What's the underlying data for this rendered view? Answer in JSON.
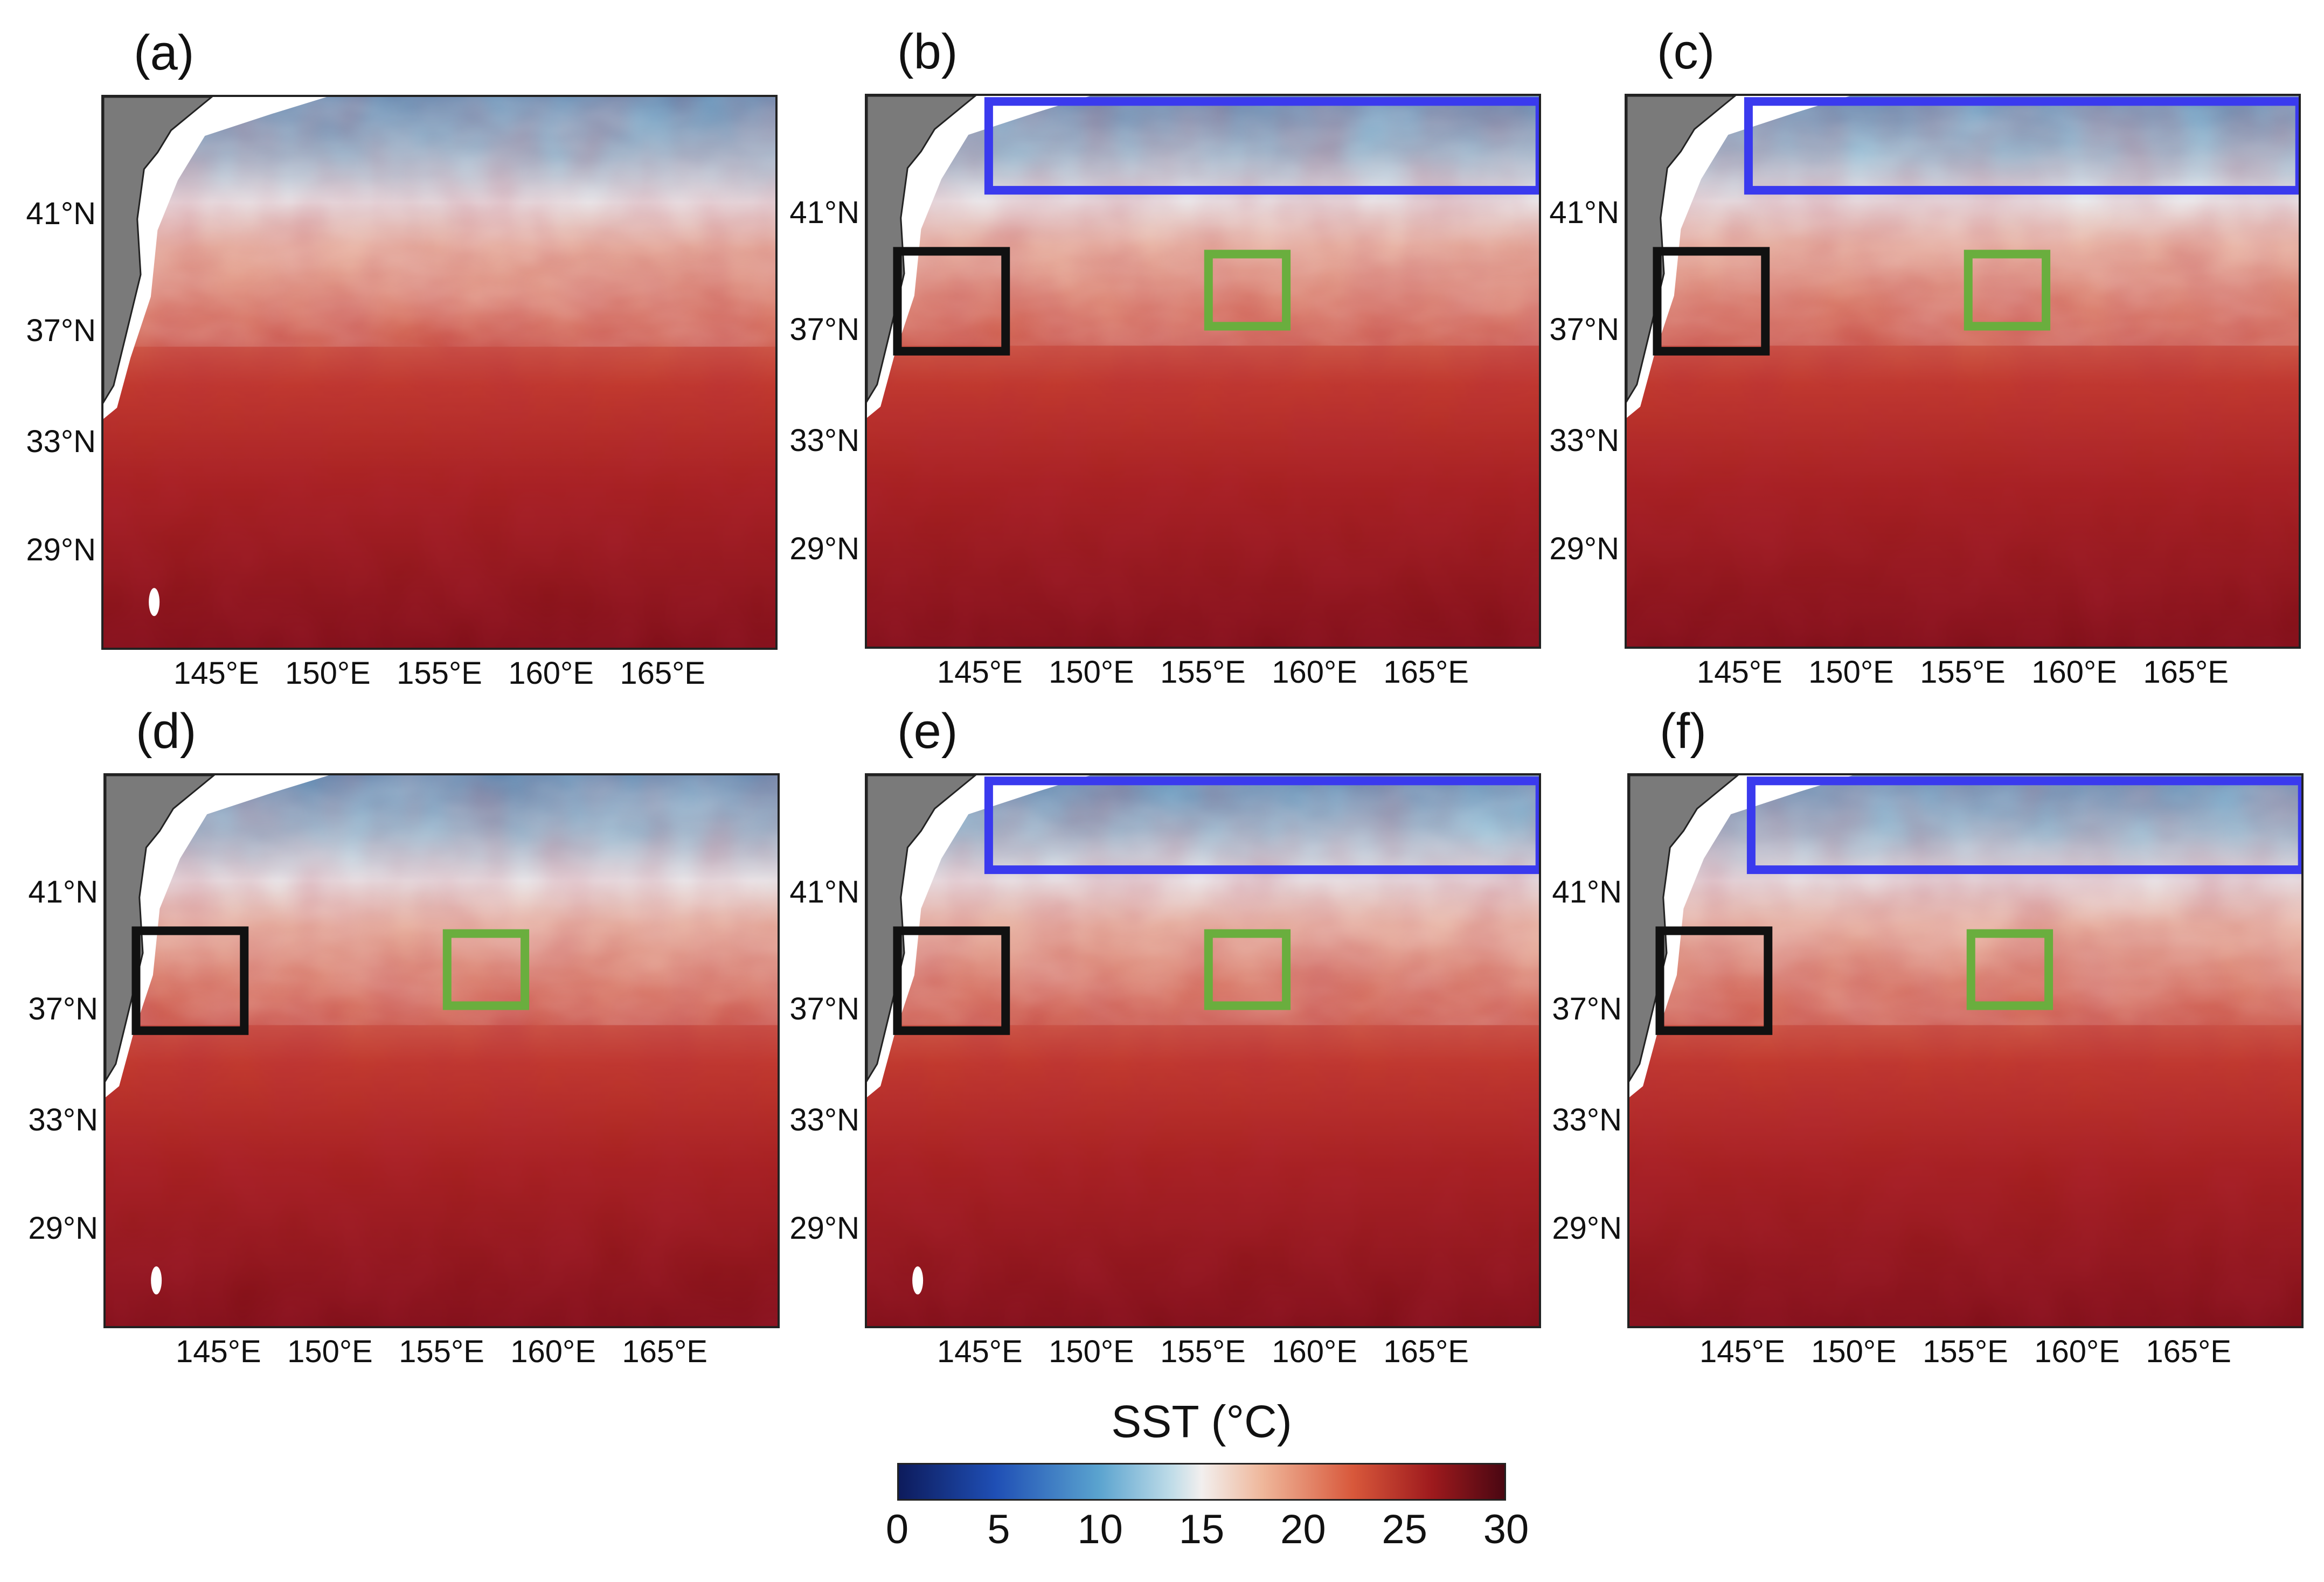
{
  "figure": {
    "colorbar": {
      "title": "SST (°C)",
      "ticks": [
        "0",
        "5",
        "10",
        "15",
        "20",
        "25",
        "30"
      ],
      "range": [
        0,
        30
      ],
      "colors": [
        "#0d1b5c",
        "#1f4fb5",
        "#5aa3cf",
        "#f2efee",
        "#d8583b",
        "#9e1a1d",
        "#4a0712"
      ]
    },
    "lat_labels": [
      "41°N",
      "37°N",
      "33°N",
      "29°N"
    ],
    "lon_labels": [
      "145°E",
      "150°E",
      "155°E",
      "160°E",
      "165°E"
    ],
    "box_colors": {
      "blue": "#3a3aee",
      "black": "#111111",
      "green": "#6aae3e"
    },
    "panels": [
      {
        "label": "(a)",
        "boxes": []
      },
      {
        "label": "(b)",
        "boxes": [
          "blue",
          "black",
          "green"
        ]
      },
      {
        "label": "(c)",
        "boxes": [
          "blue",
          "black",
          "green"
        ]
      },
      {
        "label": "(d)",
        "boxes": [
          "black",
          "green"
        ]
      },
      {
        "label": "(e)",
        "boxes": [
          "blue",
          "black",
          "green"
        ]
      },
      {
        "label": "(f)",
        "boxes": [
          "blue",
          "black",
          "green"
        ]
      }
    ]
  }
}
